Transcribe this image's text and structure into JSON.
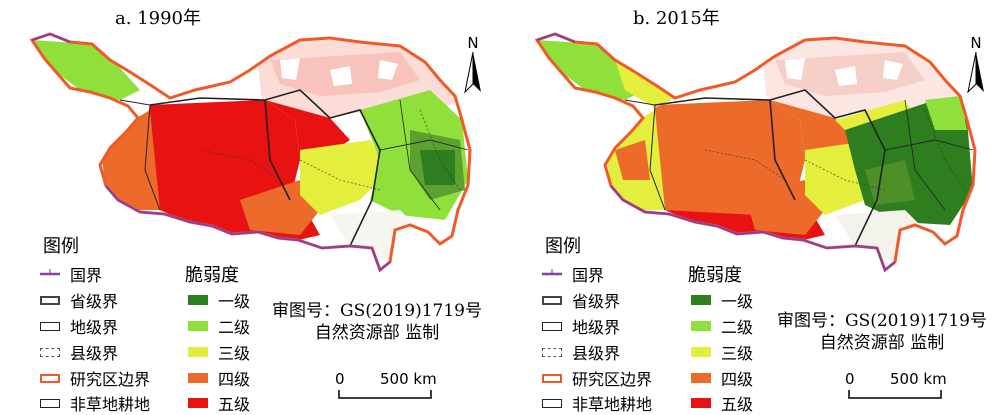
{
  "panels": [
    {
      "title": "a. 1990年"
    },
    {
      "title": "b. 2015年"
    }
  ],
  "north_label": "N",
  "legend": {
    "title": "图例",
    "boundaries": [
      {
        "label": "国界",
        "style": "national"
      },
      {
        "label": "省级界",
        "style": "province"
      },
      {
        "label": "地级界",
        "style": "prefecture"
      },
      {
        "label": "县级界",
        "style": "county"
      },
      {
        "label": "研究区边界",
        "style": "study"
      },
      {
        "label": "非草地耕地",
        "style": "nongrass"
      }
    ],
    "national_marker": "未定",
    "fragility_title": "脆弱度",
    "fragility_levels": [
      {
        "label": "一级",
        "color": "#2e7d1e"
      },
      {
        "label": "二级",
        "color": "#8fe03a"
      },
      {
        "label": "三级",
        "color": "#e3ef3c"
      },
      {
        "label": "四级",
        "color": "#ec6b2a"
      },
      {
        "label": "五级",
        "color": "#e81212"
      }
    ]
  },
  "review": {
    "line1": "审图号：GS(2019)1719号",
    "line2": "自然资源部 监制"
  },
  "scale": {
    "zero": "0",
    "max": "500 km"
  },
  "colors": {
    "national_border": "#8a3fa8",
    "study_border": "#f05a28",
    "background": "#ffffff"
  }
}
